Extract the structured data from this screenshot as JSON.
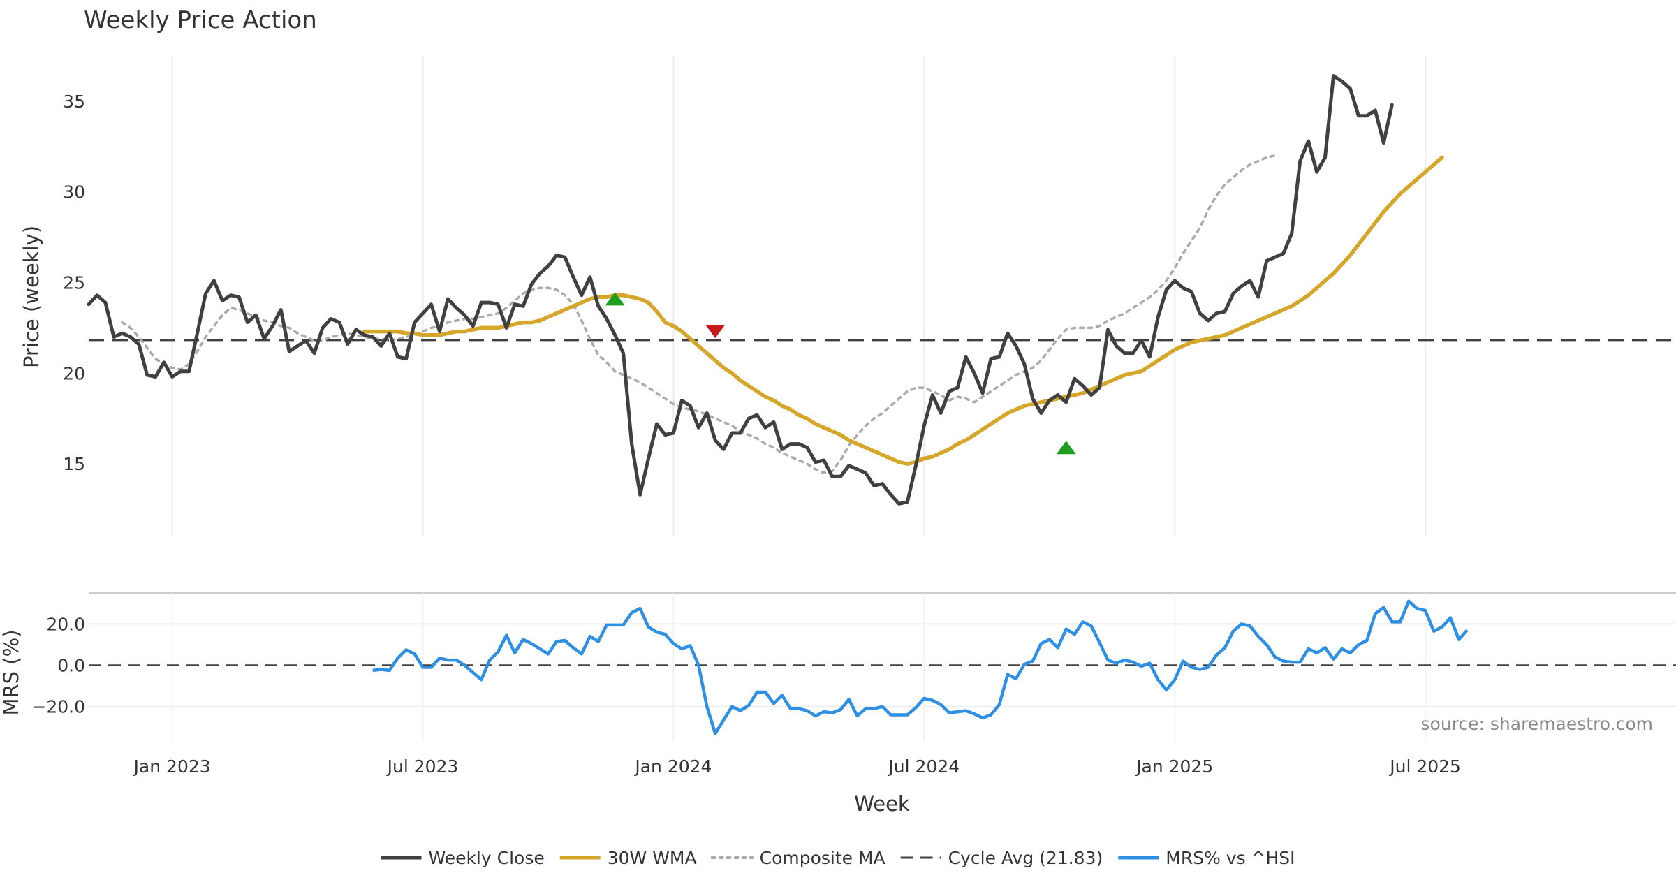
{
  "chart_data": {
    "type": "line",
    "title": "Weekly Price Action",
    "xlabel": "Week",
    "x_ticks": [
      "Jan 2023",
      "Jul 2023",
      "Jan 2024",
      "Jul 2024",
      "Jan 2025",
      "Jul 2025"
    ],
    "x_range": [
      0,
      190
    ],
    "tick_weeks": [
      10,
      40,
      70,
      100,
      130,
      160
    ],
    "price_panel": {
      "ylabel": "Price (weekly)",
      "ylim": [
        11,
        37.5
      ],
      "y_ticks": [
        15,
        20,
        25,
        30,
        35
      ],
      "cycle_avg": 21.83,
      "series": [
        {
          "name": "Weekly Close",
          "color": "#404040",
          "start": 0,
          "values": [
            23.8,
            24.3,
            23.9,
            22.0,
            22.2,
            22.0,
            21.6,
            19.9,
            19.8,
            20.6,
            19.8,
            20.1,
            20.1,
            22.2,
            24.4,
            25.1,
            24.0,
            24.3,
            24.2,
            22.8,
            23.2,
            21.9,
            22.6,
            23.5,
            21.2,
            21.5,
            21.8,
            21.1,
            22.5,
            23.0,
            22.8,
            21.6,
            22.4,
            22.1,
            22.0,
            21.5,
            22.2,
            20.9,
            20.8,
            22.8,
            23.3,
            23.8,
            22.3,
            24.1,
            23.6,
            23.2,
            22.6,
            23.9,
            23.9,
            23.8,
            22.5,
            23.8,
            23.7,
            24.9,
            25.5,
            25.9,
            26.5,
            26.4,
            25.3,
            24.3,
            25.3,
            23.7,
            23.0,
            22.1,
            21.1,
            16.1,
            13.3,
            15.3,
            17.2,
            16.6,
            16.7,
            18.5,
            18.2,
            17.0,
            17.8,
            16.3,
            15.8,
            16.7,
            16.7,
            17.5,
            17.7,
            17.0,
            17.3,
            15.8,
            16.1,
            16.1,
            15.9,
            15.1,
            15.2,
            14.3,
            14.3,
            14.9,
            14.7,
            14.5,
            13.8,
            13.9,
            13.3,
            12.8,
            12.9,
            14.9,
            17.1,
            18.8,
            17.8,
            19.0,
            19.2,
            20.9,
            20.0,
            18.9,
            20.8,
            20.9,
            22.2,
            21.5,
            20.5,
            18.6,
            17.8,
            18.5,
            18.8,
            18.4,
            19.7,
            19.3,
            18.8,
            19.2,
            22.4,
            21.5,
            21.1,
            21.1,
            21.8,
            20.9,
            23.1,
            24.6,
            25.1,
            24.7,
            24.5,
            23.3,
            22.9,
            23.3,
            23.4,
            24.4,
            24.8,
            25.1,
            24.2,
            26.2,
            26.4,
            26.6,
            27.7,
            31.7,
            32.8,
            31.1,
            31.9,
            36.4,
            36.1,
            35.7,
            34.2,
            34.2,
            34.5,
            32.7,
            34.8
          ]
        },
        {
          "name": "30W WMA",
          "color": "#d6a62b",
          "start": 33,
          "values": [
            22.3,
            22.3,
            22.3,
            22.3,
            22.3,
            22.2,
            22.2,
            22.1,
            22.1,
            22.1,
            22.2,
            22.3,
            22.3,
            22.4,
            22.5,
            22.5,
            22.5,
            22.6,
            22.7,
            22.8,
            22.8,
            22.9,
            23.1,
            23.3,
            23.5,
            23.7,
            23.9,
            24.1,
            24.2,
            24.2,
            24.3,
            24.3,
            24.2,
            24.1,
            23.9,
            23.4,
            22.8,
            22.6,
            22.3,
            21.9,
            21.5,
            21.1,
            20.7,
            20.3,
            20.0,
            19.6,
            19.3,
            19.0,
            18.7,
            18.5,
            18.2,
            18.0,
            17.7,
            17.5,
            17.2,
            17.0,
            16.8,
            16.6,
            16.3,
            16.1,
            15.9,
            15.7,
            15.5,
            15.3,
            15.1,
            15.0,
            15.1,
            15.3,
            15.4,
            15.6,
            15.8,
            16.1,
            16.3,
            16.6,
            16.9,
            17.2,
            17.5,
            17.8,
            18.0,
            18.2,
            18.3,
            18.4,
            18.5,
            18.6,
            18.7,
            18.8,
            18.9,
            19.1,
            19.3,
            19.5,
            19.7,
            19.9,
            20.0,
            20.1,
            20.4,
            20.7,
            21.0,
            21.3,
            21.5,
            21.7,
            21.8,
            21.9,
            22.0,
            22.1,
            22.3,
            22.5,
            22.7,
            22.9,
            23.1,
            23.3,
            23.5,
            23.7,
            24.0,
            24.3,
            24.7,
            25.1,
            25.5,
            26.0,
            26.5,
            27.1,
            27.7,
            28.3,
            28.9,
            29.4,
            29.9,
            30.3,
            30.7,
            31.1,
            31.5,
            31.9
          ]
        },
        {
          "name": "Composite MA",
          "color": "#ababab",
          "dashed": true,
          "start": 4,
          "values": [
            22.8,
            22.5,
            22.0,
            21.4,
            20.8,
            20.5,
            20.3,
            20.2,
            20.5,
            21.2,
            22.0,
            22.6,
            23.2,
            23.6,
            23.5,
            23.3,
            23.1,
            22.9,
            22.8,
            22.6,
            22.5,
            22.2,
            22.0,
            21.8,
            21.8,
            22.0,
            22.1,
            22.2,
            22.1,
            22.0,
            21.9,
            21.9,
            21.8,
            21.9,
            22.0,
            22.1,
            22.3,
            22.5,
            22.6,
            22.8,
            22.9,
            23.0,
            23.0,
            23.1,
            23.2,
            23.3,
            23.6,
            24.0,
            24.4,
            24.6,
            24.7,
            24.7,
            24.6,
            24.3,
            23.8,
            22.9,
            21.9,
            21.0,
            20.6,
            20.1,
            19.9,
            19.7,
            19.5,
            19.2,
            18.9,
            18.6,
            18.3,
            18.1,
            18.0,
            17.9,
            17.7,
            17.5,
            17.3,
            17.1,
            16.8,
            16.6,
            16.4,
            16.1,
            15.9,
            15.6,
            15.4,
            15.2,
            15.0,
            14.7,
            14.5,
            14.6,
            15.2,
            16.0,
            16.6,
            17.1,
            17.5,
            17.8,
            18.2,
            18.6,
            19.0,
            19.2,
            19.2,
            19.0,
            18.8,
            18.5,
            18.7,
            18.6,
            18.4,
            18.7,
            19.0,
            19.3,
            19.6,
            19.9,
            20.1,
            20.3,
            20.7,
            21.3,
            21.9,
            22.4,
            22.5,
            22.5,
            22.5,
            22.6,
            22.9,
            23.1,
            23.3,
            23.6,
            23.9,
            24.2,
            24.6,
            25.1,
            25.8,
            26.6,
            27.3,
            28.0,
            29.0,
            29.8,
            30.4,
            30.8,
            31.2,
            31.5,
            31.7,
            31.9,
            32.0
          ]
        }
      ],
      "markers": [
        {
          "type": "buy",
          "color": "#1f9d1f",
          "week": 63,
          "value": 24.1
        },
        {
          "type": "sell",
          "color": "#c8191c",
          "week": 75,
          "value": 22.3
        },
        {
          "type": "buy",
          "color": "#1f9d1f",
          "week": 117,
          "value": 15.9
        }
      ]
    },
    "mrs_panel": {
      "ylabel": "MRS (%)",
      "ylim": [
        -37,
        35
      ],
      "y_ticks": [
        "20.0",
        "0.0",
        "−20.0"
      ],
      "y_tick_values": [
        20,
        0,
        -20
      ],
      "series": [
        {
          "name": "MRS% vs ^HSI",
          "color": "#2e8fe3",
          "start": 34,
          "values": [
            -2.5,
            -2.0,
            -2.5,
            3.5,
            7.5,
            5.5,
            -1.0,
            -1.0,
            3.5,
            2.5,
            2.5,
            0.0,
            -3.5,
            -7.0,
            2.5,
            6.5,
            14.5,
            6.0,
            12.5,
            10.5,
            8.0,
            5.5,
            11.5,
            12.0,
            8.5,
            5.5,
            14.0,
            11.5,
            19.5,
            19.5,
            19.5,
            25.5,
            27.5,
            18.5,
            16.0,
            15.0,
            10.5,
            8.0,
            9.5,
            0.0,
            -20.0,
            -33.0,
            -26.5,
            -20.0,
            -22.0,
            -19.5,
            -13.0,
            -13.0,
            -18.5,
            -14.5,
            -21.0,
            -21.0,
            -22.0,
            -24.5,
            -22.5,
            -23.0,
            -21.5,
            -16.5,
            -24.5,
            -21.0,
            -21.0,
            -20.0,
            -24.0,
            -24.0,
            -24.0,
            -20.5,
            -16.0,
            -17.0,
            -19.0,
            -23.0,
            -22.5,
            -22.0,
            -23.5,
            -25.5,
            -24.0,
            -19.0,
            -4.5,
            -6.5,
            0.5,
            2.0,
            10.5,
            12.5,
            8.5,
            17.5,
            15.0,
            21.0,
            19.0,
            11.0,
            2.5,
            1.0,
            2.5,
            1.5,
            -0.5,
            1.0,
            -7.0,
            -12.0,
            -7.0,
            2.0,
            -1.0,
            -2.0,
            -1.0,
            5.0,
            8.5,
            16.5,
            20.0,
            19.0,
            14.0,
            10.0,
            4.0,
            2.0,
            1.5,
            1.5,
            8.0,
            6.0,
            8.5,
            3.0,
            8.0,
            6.0,
            10.0,
            12.0,
            25.0,
            28.0,
            21.0,
            21.0,
            31.0,
            27.5,
            26.5,
            16.5,
            18.5,
            23.0,
            12.5,
            17.0
          ]
        }
      ]
    },
    "source": "source: sharemaestro.com",
    "legend": [
      {
        "label": "Weekly Close",
        "color": "#404040",
        "style": "solid"
      },
      {
        "label": "30W WMA",
        "color": "#d6a62b",
        "style": "solid"
      },
      {
        "label": "Composite MA",
        "color": "#ababab",
        "style": "dotted"
      },
      {
        "label": "Cycle Avg (21.83)",
        "color": "#404040",
        "style": "dashed"
      },
      {
        "label": "MRS% vs ^HSI",
        "color": "#2e8fe3",
        "style": "solid"
      }
    ]
  }
}
